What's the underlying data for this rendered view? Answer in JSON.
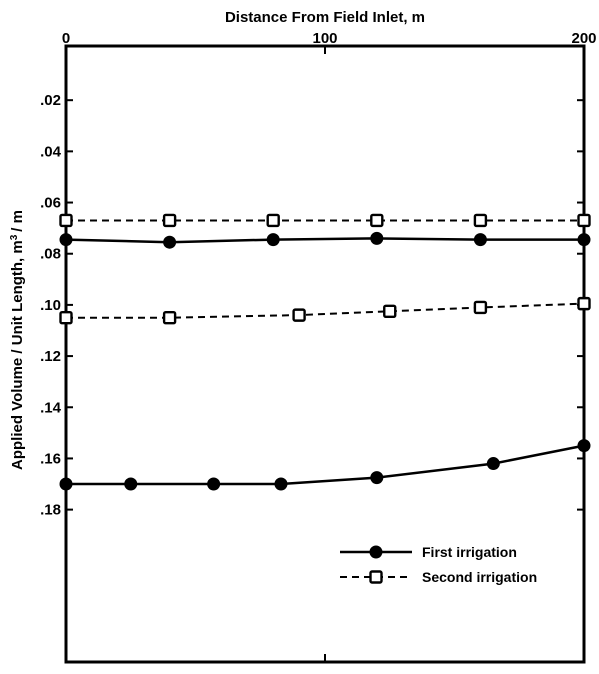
{
  "chart_data": {
    "type": "line",
    "title": "",
    "xlabel": "Distance From Field Inlet, m",
    "ylabel_parts": {
      "main": "Applied Volume / Unit Length, m",
      "sup": "3",
      "tail": "/ m"
    },
    "x_axis_position": "top",
    "y_axis_inverted": true,
    "xlim": [
      0,
      200
    ],
    "ylim": [
      0,
      0.24
    ],
    "xticks": [
      0,
      100,
      200
    ],
    "xtick_labels": [
      "0",
      "100",
      "200"
    ],
    "yticks": [
      0.02,
      0.04,
      0.06,
      0.08,
      0.1,
      0.12,
      0.14,
      0.16,
      0.18
    ],
    "ytick_labels": [
      ".02",
      ".04",
      ".06",
      ".08",
      ".10",
      ".12",
      ".14",
      ".16",
      ".18"
    ],
    "grid": false,
    "legend_position": "bottom-right",
    "series": [
      {
        "name": "First irrigation",
        "line_style": "solid",
        "marker": "filled-circle",
        "x": [
          0,
          40,
          80,
          120,
          160,
          200
        ],
        "y": [
          0.0745,
          0.0755,
          0.0745,
          0.074,
          0.0745,
          0.0745
        ]
      },
      {
        "name": "Second irrigation",
        "line_style": "dashed",
        "marker": "open-square",
        "x": [
          0,
          40,
          80,
          120,
          160,
          200
        ],
        "y": [
          0.067,
          0.067,
          0.067,
          0.067,
          0.067,
          0.067
        ]
      },
      {
        "name": "",
        "line_style": "dashed",
        "marker": "open-square",
        "x": [
          0,
          40,
          90,
          125,
          160,
          200
        ],
        "y": [
          0.105,
          0.105,
          0.104,
          0.1025,
          0.101,
          0.0995
        ]
      },
      {
        "name": "",
        "line_style": "solid",
        "marker": "filled-circle",
        "x": [
          0,
          25,
          57,
          83,
          120,
          165,
          200
        ],
        "y": [
          0.17,
          0.17,
          0.17,
          0.17,
          0.1675,
          0.162,
          0.155
        ]
      }
    ]
  }
}
